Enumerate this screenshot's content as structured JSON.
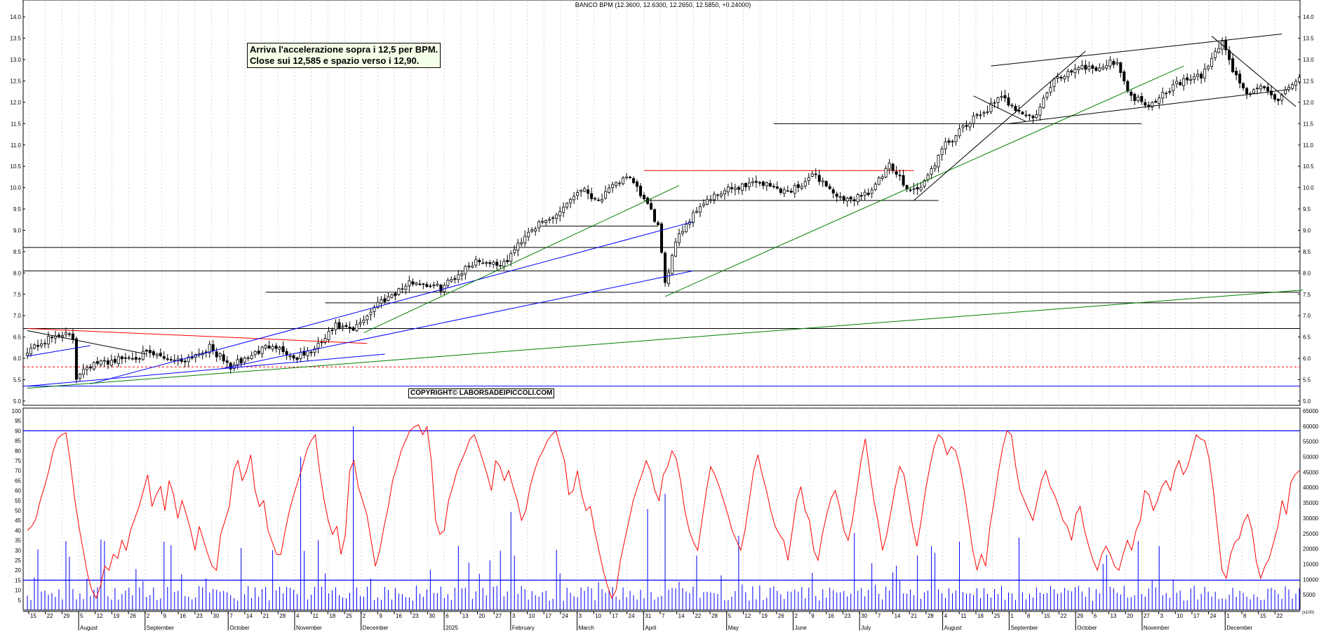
{
  "title": "BANCO BPM (12.3600, 12.6300, 12.2650, 12.5850, +0.24000)",
  "annotation": {
    "line1": "Arriva l'accelerazione sopra i 12,5 per BPM.",
    "line2": "Close sui 12,585 e spazio verso i 12,90."
  },
  "copyright": "COPYRIGHT© LABORSADEIPICCOLI.COM",
  "volume_unit_label": "(x100)",
  "colors": {
    "candles": "#000000",
    "oscillator": "#ff0000",
    "volume": "#0000ff",
    "support_black": "#000000",
    "trend_blue": "#0000ff",
    "trend_green": "#008000",
    "resistance_red": "#ff0000"
  },
  "chart_data": [
    {
      "type": "candlestick",
      "ylim": [
        4.9,
        14.2
      ],
      "y_ticks": [
        "5.0",
        "5.5",
        "6.0",
        "6.5",
        "7.0",
        "7.5",
        "8.0",
        "8.5",
        "9.0",
        "9.5",
        "10.0",
        "10.5",
        "11.0",
        "11.5",
        "12.0",
        "12.5",
        "13.0",
        "13.5",
        "14.0"
      ],
      "month_labels": [
        "August",
        "September",
        "October",
        "November",
        "December",
        "2025",
        "February",
        "March",
        "April",
        "May",
        "June",
        "July",
        "August",
        "September",
        "October",
        "November",
        "December"
      ],
      "day_ticks": [
        "15",
        "22",
        "29",
        "5",
        "12",
        "19",
        "26",
        "2",
        "9",
        "16",
        "23",
        "30",
        "7",
        "14",
        "21",
        "28",
        "4",
        "11",
        "18",
        "25",
        "2",
        "9",
        "16",
        "23",
        "30",
        "6",
        "13",
        "20",
        "27",
        "3",
        "10",
        "17",
        "24",
        "3",
        "10",
        "17",
        "24",
        "31",
        "7",
        "14",
        "22",
        "28",
        "5",
        "12",
        "19",
        "26",
        "2",
        "9",
        "16",
        "23",
        "30",
        "7",
        "14",
        "21",
        "28",
        "4",
        "11",
        "18",
        "25",
        "1",
        "8",
        "15",
        "22",
        "29",
        "6",
        "13",
        "20",
        "27",
        "3",
        "10",
        "17",
        "24",
        "1",
        "8",
        "15",
        "22"
      ],
      "waypoints": [
        [
          0,
          6.2
        ],
        [
          10,
          6.6
        ],
        [
          13,
          6.45
        ],
        [
          14,
          5.55
        ],
        [
          16,
          5.8
        ],
        [
          24,
          5.95
        ],
        [
          34,
          6.1
        ],
        [
          44,
          5.95
        ],
        [
          52,
          6.25
        ],
        [
          58,
          5.8
        ],
        [
          70,
          6.35
        ],
        [
          76,
          6.0
        ],
        [
          82,
          6.2
        ],
        [
          88,
          6.75
        ],
        [
          93,
          6.65
        ],
        [
          100,
          7.3
        ],
        [
          110,
          7.8
        ],
        [
          118,
          7.65
        ],
        [
          128,
          8.3
        ],
        [
          136,
          8.2
        ],
        [
          143,
          9.0
        ],
        [
          150,
          9.3
        ],
        [
          158,
          10.0
        ],
        [
          163,
          9.7
        ],
        [
          171,
          10.3
        ],
        [
          177,
          9.6
        ],
        [
          180,
          9.1
        ],
        [
          182,
          7.7
        ],
        [
          185,
          8.8
        ],
        [
          192,
          9.6
        ],
        [
          200,
          9.95
        ],
        [
          208,
          10.15
        ],
        [
          217,
          9.9
        ],
        [
          225,
          10.3
        ],
        [
          233,
          9.65
        ],
        [
          241,
          9.95
        ],
        [
          246,
          10.5
        ],
        [
          252,
          9.95
        ],
        [
          255,
          10.0
        ],
        [
          262,
          11.0
        ],
        [
          270,
          11.6
        ],
        [
          278,
          12.1
        ],
        [
          287,
          11.6
        ],
        [
          293,
          12.5
        ],
        [
          300,
          12.85
        ],
        [
          306,
          12.8
        ],
        [
          311,
          13.0
        ],
        [
          314,
          12.2
        ],
        [
          320,
          11.95
        ],
        [
          328,
          12.45
        ],
        [
          335,
          12.6
        ],
        [
          341,
          13.45
        ],
        [
          344,
          12.75
        ],
        [
          348,
          12.2
        ],
        [
          353,
          12.35
        ],
        [
          357,
          12.05
        ],
        [
          360,
          12.3
        ],
        [
          363,
          12.585
        ]
      ],
      "horizontal_levels": [
        {
          "value": 8.6,
          "color": "black"
        },
        {
          "value": 8.05,
          "color": "black"
        },
        {
          "value": 7.55,
          "color": "black"
        },
        {
          "value": 7.3,
          "color": "black"
        },
        {
          "value": 6.7,
          "color": "black"
        },
        {
          "value": 5.8,
          "color": "red",
          "style": "dashed"
        },
        {
          "value": 5.35,
          "color": "blue"
        },
        {
          "value": 10.4,
          "color": "red"
        },
        {
          "value": 11.5,
          "color": "black"
        },
        {
          "value": 9.7,
          "color": "black"
        },
        {
          "value": 9.1,
          "color": "black"
        }
      ],
      "volume_ylim": [
        0,
        65000
      ],
      "volume_ticks": [
        "5000",
        "10000",
        "15000",
        "20000",
        "25000",
        "30000",
        "35000",
        "40000",
        "45000",
        "50000",
        "55000",
        "60000",
        "65000"
      ],
      "volume_guide_levels": [
        9600,
        59500
      ]
    },
    {
      "type": "line",
      "series": [
        {
          "values": [
            40,
            42,
            46,
            55,
            62,
            70,
            80,
            86,
            88,
            89,
            74,
            56,
            42,
            30,
            18,
            10,
            6,
            12,
            22,
            20,
            28,
            26,
            35,
            30,
            40,
            46,
            52,
            60,
            68,
            52,
            58,
            62,
            50,
            65,
            58,
            46,
            55,
            48,
            40,
            30,
            42,
            35,
            28,
            22,
            20,
            38,
            45,
            52,
            70,
            75,
            65,
            70,
            78,
            60,
            52,
            55,
            40,
            34,
            28,
            28,
            40,
            50,
            58,
            65,
            72,
            80,
            85,
            88,
            70,
            56,
            45,
            38,
            42,
            28,
            38,
            70,
            75,
            62,
            55,
            48,
            35,
            22,
            30,
            42,
            52,
            65,
            72,
            80,
            85,
            90,
            92,
            93,
            88,
            92,
            75,
            45,
            38,
            40,
            55,
            62,
            70,
            75,
            80,
            86,
            88,
            82,
            75,
            68,
            60,
            75,
            72,
            65,
            70,
            62,
            55,
            45,
            50,
            62,
            70,
            76,
            80,
            85,
            88,
            90,
            82,
            75,
            58,
            60,
            70,
            58,
            50,
            52,
            40,
            30,
            20,
            12,
            6,
            10,
            25,
            35,
            45,
            55,
            62,
            68,
            75,
            70,
            60,
            55,
            68,
            72,
            80,
            76,
            65,
            50,
            40,
            34,
            30,
            45,
            60,
            72,
            68,
            62,
            55,
            48,
            40,
            35,
            30,
            40,
            55,
            70,
            78,
            68,
            60,
            50,
            42,
            38,
            35,
            25,
            40,
            55,
            62,
            50,
            45,
            30,
            25,
            38,
            48,
            56,
            60,
            52,
            40,
            35,
            45,
            60,
            75,
            86,
            70,
            55,
            44,
            30,
            38,
            50,
            62,
            72,
            68,
            55,
            42,
            32,
            45,
            60,
            72,
            82,
            88,
            86,
            78,
            82,
            80,
            72,
            60,
            45,
            30,
            20,
            28,
            22,
            42,
            55,
            70,
            82,
            90,
            88,
            72,
            60,
            55,
            50,
            45,
            55,
            65,
            70,
            62,
            58,
            52,
            45,
            42,
            35,
            48,
            52,
            40,
            32,
            25,
            20,
            28,
            32,
            28,
            22,
            20,
            28,
            35,
            30,
            40,
            45,
            60,
            58,
            50,
            55,
            62,
            65,
            60,
            70,
            75,
            68,
            72,
            80,
            88,
            86,
            85,
            76,
            60,
            40,
            20,
            16,
            28,
            34,
            36,
            44,
            48,
            40,
            24,
            16,
            22,
            26,
            34,
            42,
            55,
            48,
            64,
            68,
            70
          ]
        }
      ],
      "ylim": [
        0,
        100
      ],
      "y_ticks": [
        "5",
        "10",
        "15",
        "20",
        "25",
        "30",
        "35",
        "40",
        "45",
        "50",
        "55",
        "60",
        "65",
        "70",
        "75",
        "80",
        "85",
        "90",
        "95",
        "100"
      ],
      "guide_levels": [
        15,
        90
      ]
    }
  ]
}
